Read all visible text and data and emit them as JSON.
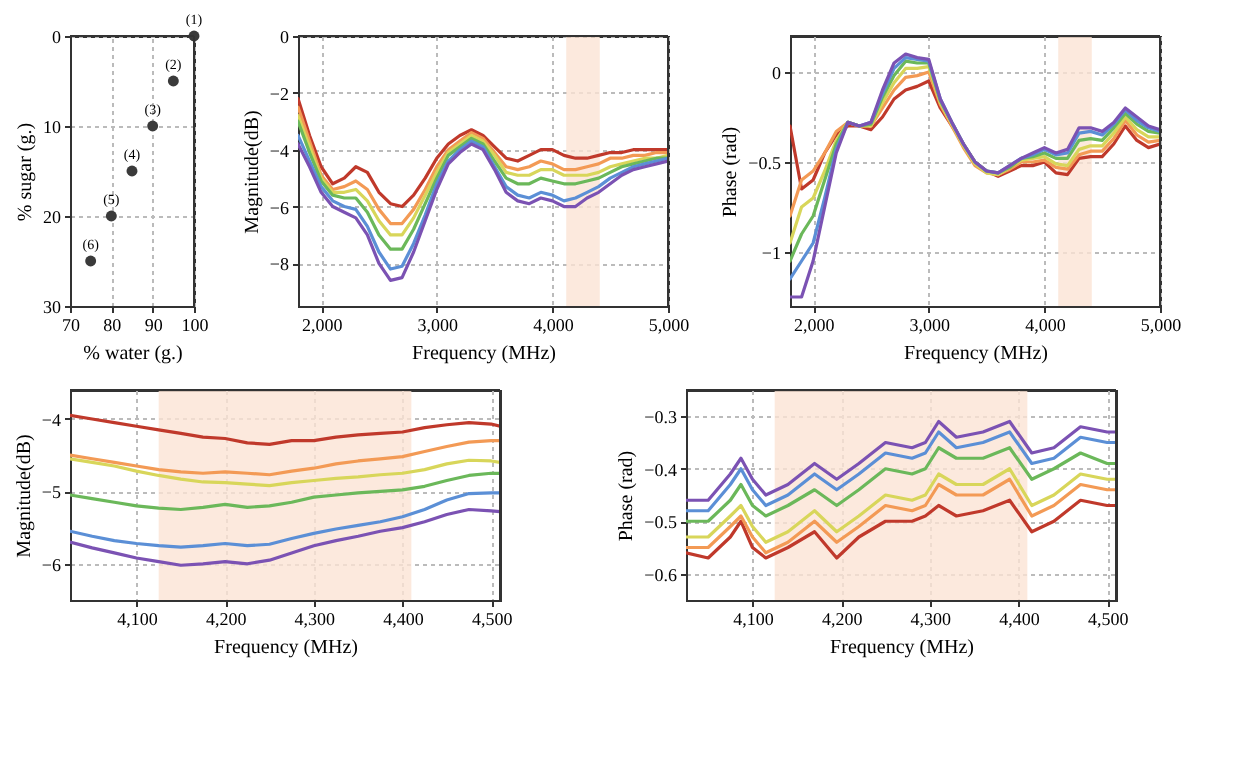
{
  "chart_data": [
    {
      "type": "scatter",
      "xlabel": "% water (g.)",
      "ylabel": "% sugar (g.)",
      "x": [
        100,
        95,
        90,
        85,
        80,
        75
      ],
      "xlim": [
        70,
        100
      ],
      "ylim": [
        30,
        0
      ],
      "xticks": [
        70,
        80,
        90,
        100
      ],
      "yticks": [
        0,
        10,
        20,
        30
      ],
      "grid": true,
      "marker": "circle",
      "legend": false,
      "series": [
        {
          "color": "#3a3a3a",
          "values": [
            0,
            5,
            10,
            15,
            20,
            25
          ]
        }
      ],
      "annotations": [
        {
          "text": "(1)",
          "x": 100,
          "y": 0
        },
        {
          "text": "(2)",
          "x": 95,
          "y": 5
        },
        {
          "text": "(3)",
          "x": 90,
          "y": 10
        },
        {
          "text": "(4)",
          "x": 85,
          "y": 15
        },
        {
          "text": "(5)",
          "x": 80,
          "y": 20
        },
        {
          "text": "(6)",
          "x": 75,
          "y": 25
        }
      ]
    },
    {
      "type": "line",
      "xlabel": "Frequency (MHz)",
      "ylabel": "Magnitude(dB)",
      "xlim": [
        1800,
        5000
      ],
      "ylim": [
        -9.5,
        0
      ],
      "xticks": [
        {
          "value": 2000,
          "label": "2,000"
        },
        {
          "value": 3000,
          "label": "3,000"
        },
        {
          "value": 4000,
          "label": "4,000"
        },
        {
          "value": 5000,
          "label": "5,000"
        }
      ],
      "yticks": [
        0,
        -2,
        -4,
        -6,
        -8
      ],
      "grid": true,
      "legend": false,
      "line_style": "solid",
      "marker": "none",
      "x": [
        1800,
        1900,
        2000,
        2100,
        2200,
        2300,
        2400,
        2500,
        2600,
        2700,
        2800,
        2900,
        3000,
        3100,
        3200,
        3300,
        3400,
        3500,
        3600,
        3700,
        3800,
        3900,
        4000,
        4100,
        4200,
        4300,
        4400,
        4500,
        4600,
        4700,
        4800,
        4900,
        5000
      ],
      "bands": [
        {
          "axis": "x",
          "from": 4120,
          "to": 4410,
          "color": "#fbe4d5"
        }
      ],
      "series": [
        {
          "color": "#c0392b",
          "values": [
            -2.2,
            -3.5,
            -4.6,
            -5.2,
            -5.0,
            -4.6,
            -4.8,
            -5.5,
            -5.9,
            -6.0,
            -5.6,
            -5.0,
            -4.3,
            -3.8,
            -3.5,
            -3.3,
            -3.5,
            -3.9,
            -4.3,
            -4.4,
            -4.2,
            -4.0,
            -4.0,
            -4.2,
            -4.3,
            -4.3,
            -4.2,
            -4.1,
            -4.1,
            -4.0,
            -4.0,
            -4.0,
            -4.0
          ]
        },
        {
          "color": "#f39a55",
          "values": [
            -2.5,
            -3.7,
            -4.9,
            -5.4,
            -5.3,
            -5.1,
            -5.4,
            -6.1,
            -6.6,
            -6.6,
            -6.1,
            -5.4,
            -4.6,
            -4.0,
            -3.7,
            -3.4,
            -3.6,
            -4.1,
            -4.6,
            -4.7,
            -4.6,
            -4.4,
            -4.5,
            -4.7,
            -4.7,
            -4.6,
            -4.5,
            -4.3,
            -4.3,
            -4.2,
            -4.2,
            -4.1,
            -4.1
          ]
        },
        {
          "color": "#d8d65a",
          "values": [
            -2.8,
            -3.9,
            -5.0,
            -5.5,
            -5.5,
            -5.4,
            -5.8,
            -6.5,
            -7.0,
            -7.0,
            -6.4,
            -5.6,
            -4.8,
            -4.1,
            -3.8,
            -3.5,
            -3.7,
            -4.2,
            -4.8,
            -4.9,
            -4.9,
            -4.7,
            -4.7,
            -4.9,
            -4.9,
            -4.9,
            -4.8,
            -4.6,
            -4.5,
            -4.4,
            -4.3,
            -4.3,
            -4.2
          ]
        },
        {
          "color": "#6bb85a",
          "values": [
            -3.0,
            -4.1,
            -5.1,
            -5.6,
            -5.7,
            -5.7,
            -6.2,
            -7.0,
            -7.5,
            -7.5,
            -6.8,
            -5.9,
            -5.0,
            -4.2,
            -3.9,
            -3.6,
            -3.8,
            -4.4,
            -5.0,
            -5.2,
            -5.2,
            -5.0,
            -5.1,
            -5.2,
            -5.2,
            -5.1,
            -5.0,
            -4.8,
            -4.6,
            -4.5,
            -4.4,
            -4.3,
            -4.3
          ]
        },
        {
          "color": "#5b8fd6",
          "values": [
            -3.5,
            -4.4,
            -5.3,
            -5.8,
            -6.0,
            -6.1,
            -6.7,
            -7.6,
            -8.2,
            -8.1,
            -7.3,
            -6.3,
            -5.2,
            -4.4,
            -4.0,
            -3.7,
            -3.9,
            -4.6,
            -5.3,
            -5.6,
            -5.7,
            -5.5,
            -5.6,
            -5.8,
            -5.7,
            -5.5,
            -5.3,
            -5.0,
            -4.8,
            -4.6,
            -4.5,
            -4.4,
            -4.3
          ]
        },
        {
          "color": "#7b52b3",
          "values": [
            -3.8,
            -4.6,
            -5.5,
            -6.0,
            -6.2,
            -6.4,
            -7.0,
            -8.0,
            -8.6,
            -8.5,
            -7.6,
            -6.5,
            -5.4,
            -4.5,
            -4.1,
            -3.8,
            -4.0,
            -4.7,
            -5.5,
            -5.8,
            -5.9,
            -5.7,
            -5.8,
            -6.0,
            -6.0,
            -5.7,
            -5.5,
            -5.2,
            -4.9,
            -4.7,
            -4.6,
            -4.5,
            -4.4
          ]
        }
      ]
    },
    {
      "type": "line",
      "xlabel": "Frequency (MHz)",
      "ylabel": "Phase (rad)",
      "xlim": [
        1800,
        5000
      ],
      "ylim": [
        -1.3,
        0.2
      ],
      "xticks": [
        {
          "value": 2000,
          "label": "2,000"
        },
        {
          "value": 3000,
          "label": "3,000"
        },
        {
          "value": 4000,
          "label": "4,000"
        },
        {
          "value": 5000,
          "label": "5,000"
        }
      ],
      "yticks": [
        0,
        -0.5,
        -1
      ],
      "grid": true,
      "legend": false,
      "line_style": "solid",
      "marker": "none",
      "x": [
        1800,
        1900,
        2000,
        2100,
        2200,
        2300,
        2400,
        2500,
        2600,
        2700,
        2800,
        2900,
        3000,
        3100,
        3200,
        3300,
        3400,
        3500,
        3600,
        3700,
        3800,
        3900,
        4000,
        4100,
        4200,
        4300,
        4400,
        4500,
        4600,
        4700,
        4800,
        4900,
        5000
      ],
      "bands": [
        {
          "axis": "x",
          "from": 4120,
          "to": 4410,
          "color": "#fbe4d5"
        }
      ],
      "series": [
        {
          "color": "#c0392b",
          "values": [
            -0.3,
            -0.65,
            -0.6,
            -0.45,
            -0.35,
            -0.3,
            -0.3,
            -0.32,
            -0.25,
            -0.15,
            -0.1,
            -0.08,
            -0.05,
            -0.2,
            -0.3,
            -0.4,
            -0.5,
            -0.55,
            -0.58,
            -0.55,
            -0.52,
            -0.52,
            -0.5,
            -0.56,
            -0.57,
            -0.48,
            -0.47,
            -0.47,
            -0.4,
            -0.3,
            -0.38,
            -0.42,
            -0.4
          ]
        },
        {
          "color": "#f39a55",
          "values": [
            -0.8,
            -0.6,
            -0.55,
            -0.45,
            -0.33,
            -0.28,
            -0.3,
            -0.3,
            -0.2,
            -0.1,
            -0.03,
            -0.02,
            0.0,
            -0.18,
            -0.3,
            -0.42,
            -0.52,
            -0.56,
            -0.57,
            -0.54,
            -0.5,
            -0.5,
            -0.49,
            -0.53,
            -0.54,
            -0.46,
            -0.44,
            -0.44,
            -0.37,
            -0.27,
            -0.35,
            -0.39,
            -0.38
          ]
        },
        {
          "color": "#d8d65a",
          "values": [
            -0.95,
            -0.75,
            -0.7,
            -0.55,
            -0.38,
            -0.28,
            -0.3,
            -0.3,
            -0.17,
            -0.06,
            0.02,
            0.02,
            0.03,
            -0.17,
            -0.29,
            -0.41,
            -0.51,
            -0.56,
            -0.57,
            -0.53,
            -0.49,
            -0.48,
            -0.47,
            -0.51,
            -0.52,
            -0.43,
            -0.41,
            -0.41,
            -0.34,
            -0.25,
            -0.32,
            -0.36,
            -0.36
          ]
        },
        {
          "color": "#6bb85a",
          "values": [
            -1.05,
            -0.9,
            -0.8,
            -0.6,
            -0.4,
            -0.28,
            -0.3,
            -0.29,
            -0.14,
            -0.02,
            0.06,
            0.05,
            0.05,
            -0.16,
            -0.28,
            -0.4,
            -0.5,
            -0.55,
            -0.56,
            -0.53,
            -0.48,
            -0.47,
            -0.45,
            -0.48,
            -0.48,
            -0.38,
            -0.37,
            -0.38,
            -0.31,
            -0.23,
            -0.29,
            -0.33,
            -0.34
          ]
        },
        {
          "color": "#5b8fd6",
          "values": [
            -1.15,
            -1.05,
            -0.95,
            -0.7,
            -0.43,
            -0.28,
            -0.3,
            -0.28,
            -0.12,
            0.02,
            0.08,
            0.07,
            0.06,
            -0.15,
            -0.28,
            -0.4,
            -0.5,
            -0.55,
            -0.56,
            -0.52,
            -0.48,
            -0.46,
            -0.43,
            -0.46,
            -0.45,
            -0.34,
            -0.33,
            -0.35,
            -0.29,
            -0.21,
            -0.27,
            -0.31,
            -0.33
          ]
        },
        {
          "color": "#7b52b3",
          "values": [
            -1.25,
            -1.25,
            -1.05,
            -0.75,
            -0.45,
            -0.28,
            -0.3,
            -0.28,
            -0.1,
            0.05,
            0.1,
            0.08,
            0.07,
            -0.15,
            -0.28,
            -0.4,
            -0.5,
            -0.55,
            -0.56,
            -0.52,
            -0.48,
            -0.45,
            -0.42,
            -0.45,
            -0.43,
            -0.31,
            -0.31,
            -0.33,
            -0.28,
            -0.2,
            -0.25,
            -0.3,
            -0.32
          ]
        }
      ]
    },
    {
      "type": "line",
      "xlabel": "Frequency (MHz)",
      "ylabel": "Magnitude(dB)",
      "xlim": [
        4025,
        4510
      ],
      "ylim": [
        -6.5,
        -3.6
      ],
      "xticks": [
        {
          "value": 4100,
          "label": "4,100"
        },
        {
          "value": 4200,
          "label": "4,200"
        },
        {
          "value": 4300,
          "label": "4,300"
        },
        {
          "value": 4400,
          "label": "4,400"
        },
        {
          "value": 4500,
          "label": "4,500"
        }
      ],
      "yticks": [
        -4,
        -5,
        -6
      ],
      "grid": true,
      "legend": false,
      "line_style": "solid",
      "marker": "none",
      "x": [
        4025,
        4050,
        4075,
        4100,
        4125,
        4150,
        4175,
        4200,
        4225,
        4250,
        4275,
        4300,
        4325,
        4350,
        4375,
        4400,
        4425,
        4450,
        4475,
        4500,
        4510
      ],
      "bands": [
        {
          "axis": "x",
          "from": 4125,
          "to": 4410,
          "color": "#fbe4d5"
        }
      ],
      "series": [
        {
          "color": "#c0392b",
          "values": [
            -3.95,
            -4.0,
            -4.05,
            -4.1,
            -4.15,
            -4.2,
            -4.25,
            -4.27,
            -4.33,
            -4.35,
            -4.3,
            -4.3,
            -4.25,
            -4.22,
            -4.2,
            -4.18,
            -4.12,
            -4.08,
            -4.05,
            -4.07,
            -4.1
          ]
        },
        {
          "color": "#f39a55",
          "values": [
            -4.5,
            -4.55,
            -4.6,
            -4.65,
            -4.7,
            -4.73,
            -4.75,
            -4.73,
            -4.75,
            -4.77,
            -4.72,
            -4.68,
            -4.62,
            -4.58,
            -4.55,
            -4.52,
            -4.45,
            -4.38,
            -4.32,
            -4.3,
            -4.3
          ]
        },
        {
          "color": "#d8d65a",
          "values": [
            -4.55,
            -4.6,
            -4.65,
            -4.72,
            -4.78,
            -4.83,
            -4.87,
            -4.88,
            -4.9,
            -4.92,
            -4.88,
            -4.85,
            -4.82,
            -4.8,
            -4.77,
            -4.75,
            -4.7,
            -4.62,
            -4.57,
            -4.58,
            -4.6
          ]
        },
        {
          "color": "#6bb85a",
          "values": [
            -5.05,
            -5.1,
            -5.15,
            -5.2,
            -5.23,
            -5.25,
            -5.22,
            -5.18,
            -5.22,
            -5.2,
            -5.15,
            -5.08,
            -5.05,
            -5.02,
            -5.0,
            -4.98,
            -4.93,
            -4.85,
            -4.78,
            -4.75,
            -4.75
          ]
        },
        {
          "color": "#5b8fd6",
          "values": [
            -5.55,
            -5.62,
            -5.68,
            -5.72,
            -5.75,
            -5.77,
            -5.75,
            -5.72,
            -5.75,
            -5.73,
            -5.65,
            -5.58,
            -5.52,
            -5.47,
            -5.42,
            -5.35,
            -5.25,
            -5.12,
            -5.03,
            -5.02,
            -5.02
          ]
        },
        {
          "color": "#7b52b3",
          "values": [
            -5.7,
            -5.78,
            -5.85,
            -5.92,
            -5.97,
            -6.02,
            -6.0,
            -5.97,
            -6.0,
            -5.95,
            -5.85,
            -5.75,
            -5.68,
            -5.62,
            -5.55,
            -5.5,
            -5.42,
            -5.32,
            -5.25,
            -5.27,
            -5.28
          ]
        }
      ]
    },
    {
      "type": "line",
      "xlabel": "Frequency (MHz)",
      "ylabel": "Phase (rad)",
      "xlim": [
        4025,
        4510
      ],
      "ylim": [
        -0.65,
        -0.25
      ],
      "xticks": [
        {
          "value": 4100,
          "label": "4,100"
        },
        {
          "value": 4200,
          "label": "4,200"
        },
        {
          "value": 4300,
          "label": "4,300"
        },
        {
          "value": 4400,
          "label": "4,400"
        },
        {
          "value": 4500,
          "label": "4,500"
        }
      ],
      "yticks": [
        -0.3,
        -0.4,
        -0.5,
        -0.6
      ],
      "grid": true,
      "legend": false,
      "line_style": "solid",
      "marker": "none",
      "x": [
        4025,
        4050,
        4075,
        4087,
        4100,
        4115,
        4140,
        4170,
        4195,
        4220,
        4250,
        4280,
        4295,
        4310,
        4330,
        4360,
        4390,
        4415,
        4440,
        4470,
        4500,
        4510
      ],
      "bands": [
        {
          "axis": "x",
          "from": 4125,
          "to": 4410,
          "color": "#fbe4d5"
        }
      ],
      "series": [
        {
          "color": "#c0392b",
          "values": [
            -0.56,
            -0.57,
            -0.53,
            -0.5,
            -0.55,
            -0.57,
            -0.55,
            -0.52,
            -0.57,
            -0.53,
            -0.5,
            -0.5,
            -0.49,
            -0.47,
            -0.49,
            -0.48,
            -0.46,
            -0.52,
            -0.5,
            -0.46,
            -0.47,
            -0.47
          ]
        },
        {
          "color": "#f39a55",
          "values": [
            -0.55,
            -0.55,
            -0.51,
            -0.49,
            -0.53,
            -0.56,
            -0.54,
            -0.5,
            -0.54,
            -0.51,
            -0.47,
            -0.48,
            -0.47,
            -0.43,
            -0.45,
            -0.45,
            -0.42,
            -0.49,
            -0.47,
            -0.43,
            -0.44,
            -0.44
          ]
        },
        {
          "color": "#d8d65a",
          "values": [
            -0.53,
            -0.53,
            -0.49,
            -0.47,
            -0.51,
            -0.54,
            -0.52,
            -0.48,
            -0.52,
            -0.49,
            -0.45,
            -0.46,
            -0.45,
            -0.41,
            -0.43,
            -0.43,
            -0.4,
            -0.47,
            -0.45,
            -0.41,
            -0.42,
            -0.42
          ]
        },
        {
          "color": "#6bb85a",
          "values": [
            -0.5,
            -0.5,
            -0.46,
            -0.43,
            -0.47,
            -0.49,
            -0.47,
            -0.44,
            -0.47,
            -0.44,
            -0.4,
            -0.41,
            -0.4,
            -0.36,
            -0.38,
            -0.38,
            -0.36,
            -0.42,
            -0.4,
            -0.37,
            -0.39,
            -0.39
          ]
        },
        {
          "color": "#5b8fd6",
          "values": [
            -0.48,
            -0.48,
            -0.43,
            -0.4,
            -0.44,
            -0.47,
            -0.45,
            -0.41,
            -0.44,
            -0.41,
            -0.37,
            -0.38,
            -0.37,
            -0.33,
            -0.36,
            -0.35,
            -0.33,
            -0.39,
            -0.38,
            -0.34,
            -0.35,
            -0.35
          ]
        },
        {
          "color": "#7b52b3",
          "values": [
            -0.46,
            -0.46,
            -0.41,
            -0.38,
            -0.42,
            -0.45,
            -0.43,
            -0.39,
            -0.42,
            -0.39,
            -0.35,
            -0.36,
            -0.35,
            -0.31,
            -0.34,
            -0.33,
            -0.31,
            -0.37,
            -0.36,
            -0.32,
            -0.33,
            -0.33
          ]
        }
      ]
    }
  ]
}
